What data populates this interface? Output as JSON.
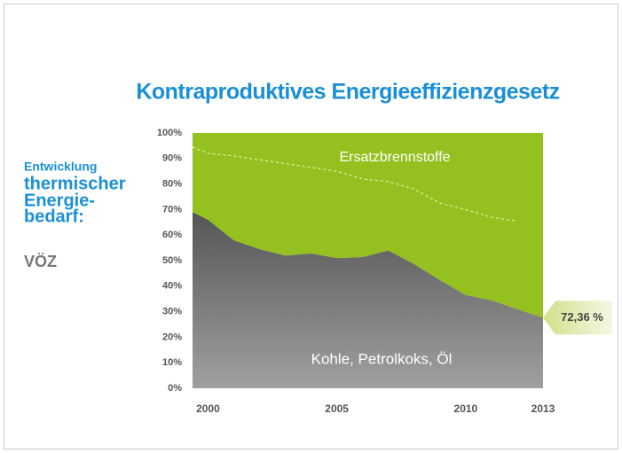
{
  "chart_data": {
    "type": "stacked_area",
    "title": "Kontraproduktives Energieeffizienzgesetz",
    "side_text": [
      "Entwicklung",
      "thermischer",
      "Energie-",
      "bedarf:"
    ],
    "source": "VÖZ",
    "x": [
      1999.4,
      2000,
      2001,
      2002,
      2003,
      2004,
      2005,
      2006,
      2007,
      2008,
      2009,
      2010,
      2011,
      2012,
      2013
    ],
    "series": [
      {
        "name": "Kohle, Petrolkoks, Öl",
        "color": "#6a6a6a",
        "values": [
          69,
          66,
          58,
          54.5,
          52,
          52.8,
          51,
          51.4,
          54,
          48.6,
          42.4,
          36.5,
          34.5,
          31,
          27.64
        ]
      },
      {
        "name": "Ersatzbrennstoffe",
        "color": "#94c11f",
        "values": [
          31,
          34,
          42,
          45.5,
          48,
          47.2,
          49,
          48.6,
          46,
          51.4,
          57.6,
          63.5,
          65.5,
          69,
          72.36
        ],
        "value_labels": [
          null,
          null,
          null,
          null,
          null,
          null,
          null,
          null,
          null,
          null,
          null,
          null,
          null,
          null,
          "72,36 %"
        ]
      }
    ],
    "lines": [
      {
        "color": "#e6f0b0",
        "dashed": true,
        "values": [
          94.5,
          92,
          91,
          89.5,
          88,
          86.5,
          85,
          82,
          81,
          78,
          72.5,
          70,
          67,
          65.5,
          null
        ]
      }
    ],
    "xlim": [
      1999.4,
      2013
    ],
    "xticks": [
      2000,
      2005,
      2010,
      2013
    ],
    "ylim": [
      0,
      100
    ],
    "yticks": [
      {
        "value": 0,
        "label": "0%"
      },
      {
        "value": 10,
        "label": "10%"
      },
      {
        "value": 20,
        "label": "20%"
      },
      {
        "value": 30,
        "label": "30%"
      },
      {
        "value": 40,
        "label": "40%"
      },
      {
        "value": 50,
        "label": "50%"
      },
      {
        "value": 60,
        "label": "60%"
      },
      {
        "value": 70,
        "label": "70%"
      },
      {
        "value": 80,
        "label": "80%"
      },
      {
        "value": 90,
        "label": "90%"
      },
      {
        "value": 100,
        "label": "100%"
      }
    ]
  }
}
